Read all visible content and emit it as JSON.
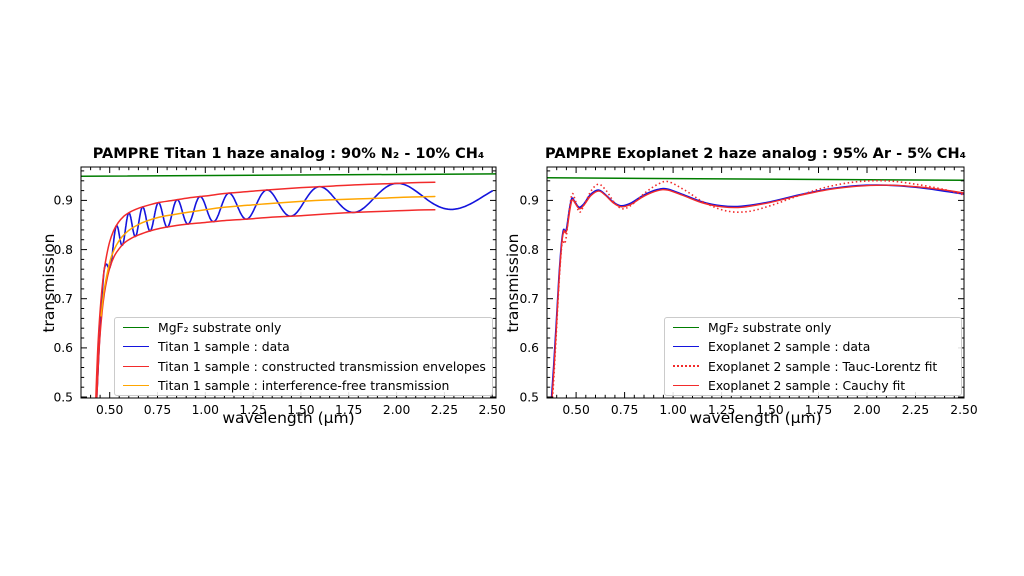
{
  "chart_data": [
    {
      "id": "titan1",
      "type": "line",
      "title": "PAMPRE Titan 1 haze analog : 90% N₂ - 10% CH₄",
      "xlabel": "wavelength (μm)",
      "ylabel": "transmission",
      "xlim": [
        0.35,
        2.52
      ],
      "ylim": [
        0.498,
        0.968
      ],
      "xticks": [
        0.5,
        0.75,
        1.0,
        1.25,
        1.5,
        1.75,
        2.0,
        2.25,
        2.5
      ],
      "xtick_labels": [
        "0.50",
        "0.75",
        "1.00",
        "1.25",
        "1.50",
        "1.75",
        "2.00",
        "2.25",
        "2.50"
      ],
      "yticks": [
        0.5,
        0.6,
        0.7,
        0.8,
        0.9
      ],
      "ytick_labels": [
        "0.5",
        "0.6",
        "0.7",
        "0.8",
        "0.9"
      ],
      "minor_x_step": 0.05,
      "minor_y_step": 0.02,
      "grid": false,
      "legend": {
        "position": "lower right"
      },
      "series": [
        {
          "name": "MgF₂ substrate only",
          "color": "#007d00",
          "line": "solid",
          "width": 1.5,
          "curves": [
            [
              [
                0.35,
                0.949
              ],
              [
                2.52,
                0.954
              ]
            ]
          ]
        },
        {
          "name": "Titan 1 sample : data",
          "color": "#1414dd",
          "line": "solid",
          "width": 1.6,
          "generator": "interference",
          "envelope_series": 2,
          "lambda_range": [
            0.432,
            2.5
          ],
          "osc": {
            "a": 8.2,
            "b": -0.35,
            "phase": 4.052
          }
        },
        {
          "name": "Titan 1 sample : constructed transmission envelopes",
          "color": "#f22b2b",
          "line": "solid",
          "width": 1.5,
          "smooth": true,
          "curves": [
            [
              [
                0.425,
                0.46
              ],
              [
                0.43,
                0.525
              ],
              [
                0.44,
                0.615
              ],
              [
                0.455,
                0.7
              ],
              [
                0.47,
                0.755
              ],
              [
                0.485,
                0.79
              ],
              [
                0.5,
                0.816
              ],
              [
                0.52,
                0.838
              ],
              [
                0.545,
                0.855
              ],
              [
                0.575,
                0.868
              ],
              [
                0.61,
                0.877
              ],
              [
                0.65,
                0.884
              ],
              [
                0.7,
                0.89
              ],
              [
                0.76,
                0.896
              ],
              [
                0.83,
                0.9
              ],
              [
                0.91,
                0.905
              ],
              [
                1.0,
                0.909
              ],
              [
                1.1,
                0.914
              ],
              [
                1.22,
                0.918
              ],
              [
                1.35,
                0.922
              ],
              [
                1.5,
                0.926
              ],
              [
                1.65,
                0.929
              ],
              [
                1.8,
                0.932
              ],
              [
                1.95,
                0.934
              ],
              [
                2.08,
                0.936
              ],
              [
                2.2,
                0.937
              ]
            ],
            [
              [
                0.428,
                0.46
              ],
              [
                0.435,
                0.52
              ],
              [
                0.445,
                0.6
              ],
              [
                0.458,
                0.665
              ],
              [
                0.472,
                0.71
              ],
              [
                0.487,
                0.742
              ],
              [
                0.503,
                0.766
              ],
              [
                0.523,
                0.786
              ],
              [
                0.548,
                0.801
              ],
              [
                0.578,
                0.814
              ],
              [
                0.613,
                0.823
              ],
              [
                0.653,
                0.83
              ],
              [
                0.703,
                0.837
              ],
              [
                0.763,
                0.843
              ],
              [
                0.833,
                0.848
              ],
              [
                0.913,
                0.852
              ],
              [
                1.0,
                0.855
              ],
              [
                1.1,
                0.859
              ],
              [
                1.22,
                0.862
              ],
              [
                1.35,
                0.866
              ],
              [
                1.5,
                0.869
              ],
              [
                1.65,
                0.873
              ],
              [
                1.8,
                0.876
              ],
              [
                1.95,
                0.878
              ],
              [
                2.08,
                0.88
              ],
              [
                2.2,
                0.881
              ]
            ]
          ]
        },
        {
          "name": "Titan 1 sample : interference-free transmission",
          "color": "#ffa600",
          "line": "solid",
          "width": 1.5,
          "smooth": true,
          "curves": [
            [
              [
                0.455,
                0.665
              ],
              [
                0.47,
                0.715
              ],
              [
                0.49,
                0.757
              ],
              [
                0.51,
                0.787
              ],
              [
                0.535,
                0.809
              ],
              [
                0.565,
                0.826
              ],
              [
                0.6,
                0.839
              ],
              [
                0.65,
                0.851
              ],
              [
                0.7,
                0.859
              ],
              [
                0.76,
                0.866
              ],
              [
                0.83,
                0.871
              ],
              [
                0.91,
                0.876
              ],
              [
                1.0,
                0.881
              ],
              [
                1.1,
                0.886
              ],
              [
                1.22,
                0.89
              ],
              [
                1.35,
                0.894
              ],
              [
                1.5,
                0.898
              ],
              [
                1.65,
                0.901
              ],
              [
                1.8,
                0.903
              ],
              [
                1.95,
                0.905
              ],
              [
                2.08,
                0.907
              ],
              [
                2.2,
                0.908
              ]
            ]
          ]
        }
      ]
    },
    {
      "id": "exoplanet2",
      "type": "line",
      "title": "PAMPRE Exoplanet 2 haze analog : 95% Ar - 5% CH₄",
      "xlabel": "wavelength (μm)",
      "ylabel": "transmission",
      "xlim": [
        0.35,
        2.5
      ],
      "ylim": [
        0.498,
        0.968
      ],
      "xticks": [
        0.5,
        0.75,
        1.0,
        1.25,
        1.5,
        1.75,
        2.0,
        2.25,
        2.5
      ],
      "xtick_labels": [
        "0.50",
        "0.75",
        "1.00",
        "1.25",
        "1.50",
        "1.75",
        "2.00",
        "2.25",
        "2.50"
      ],
      "yticks": [
        0.5,
        0.6,
        0.7,
        0.8,
        0.9
      ],
      "ytick_labels": [
        "0.5",
        "0.6",
        "0.7",
        "0.8",
        "0.9"
      ],
      "minor_x_step": 0.05,
      "minor_y_step": 0.02,
      "grid": false,
      "legend": {
        "position": "lower right"
      },
      "series": [
        {
          "name": "MgF₂ substrate only",
          "color": "#007d00",
          "line": "solid",
          "width": 1.5,
          "curves": [
            [
              [
                0.35,
                0.946
              ],
              [
                2.5,
                0.941
              ]
            ]
          ]
        },
        {
          "name": "Exoplanet 2 sample : data",
          "color": "#1414dd",
          "line": "solid",
          "width": 1.7,
          "smooth": true,
          "curves": [
            [
              [
                0.372,
                0.49
              ],
              [
                0.385,
                0.565
              ],
              [
                0.398,
                0.65
              ],
              [
                0.412,
                0.745
              ],
              [
                0.425,
                0.812
              ],
              [
                0.435,
                0.84
              ],
              [
                0.443,
                0.837
              ],
              [
                0.452,
                0.845
              ],
              [
                0.465,
                0.88
              ],
              [
                0.478,
                0.904
              ],
              [
                0.492,
                0.898
              ],
              [
                0.515,
                0.886
              ],
              [
                0.54,
                0.893
              ],
              [
                0.575,
                0.912
              ],
              [
                0.615,
                0.921
              ],
              [
                0.65,
                0.912
              ],
              [
                0.69,
                0.897
              ],
              [
                0.73,
                0.889
              ],
              [
                0.78,
                0.894
              ],
              [
                0.85,
                0.911
              ],
              [
                0.92,
                0.922
              ],
              [
                0.97,
                0.923
              ],
              [
                1.05,
                0.912
              ],
              [
                1.15,
                0.897
              ],
              [
                1.25,
                0.889
              ],
              [
                1.35,
                0.888
              ],
              [
                1.5,
                0.897
              ],
              [
                1.65,
                0.911
              ],
              [
                1.8,
                0.923
              ],
              [
                1.95,
                0.93
              ],
              [
                2.1,
                0.931
              ],
              [
                2.25,
                0.927
              ],
              [
                2.4,
                0.919
              ],
              [
                2.5,
                0.913
              ]
            ]
          ]
        },
        {
          "name": "Exoplanet 2 sample : Tauc-Lorentz fit",
          "color": "#f22b2b",
          "line": "dotted",
          "width": 1.6,
          "smooth": true,
          "curves": [
            [
              [
                0.378,
                0.49
              ],
              [
                0.392,
                0.585
              ],
              [
                0.406,
                0.69
              ],
              [
                0.419,
                0.775
              ],
              [
                0.43,
                0.818
              ],
              [
                0.44,
                0.812
              ],
              [
                0.45,
                0.828
              ],
              [
                0.466,
                0.884
              ],
              [
                0.48,
                0.913
              ],
              [
                0.494,
                0.903
              ],
              [
                0.517,
                0.876
              ],
              [
                0.546,
                0.895
              ],
              [
                0.58,
                0.921
              ],
              [
                0.617,
                0.933
              ],
              [
                0.655,
                0.92
              ],
              [
                0.695,
                0.897
              ],
              [
                0.737,
                0.883
              ],
              [
                0.787,
                0.891
              ],
              [
                0.857,
                0.916
              ],
              [
                0.927,
                0.934
              ],
              [
                0.977,
                0.938
              ],
              [
                1.06,
                0.921
              ],
              [
                1.16,
                0.896
              ],
              [
                1.27,
                0.879
              ],
              [
                1.38,
                0.877
              ],
              [
                1.5,
                0.889
              ],
              [
                1.65,
                0.91
              ],
              [
                1.8,
                0.928
              ],
              [
                1.95,
                0.938
              ],
              [
                2.1,
                0.94
              ],
              [
                2.25,
                0.933
              ],
              [
                2.4,
                0.922
              ],
              [
                2.5,
                0.911
              ]
            ]
          ]
        },
        {
          "name": "Exoplanet 2 sample : Cauchy fit",
          "color": "#f22b2b",
          "line": "solid",
          "width": 1.4,
          "smooth": true,
          "curves": [
            [
              [
                0.375,
                0.49
              ],
              [
                0.388,
                0.57
              ],
              [
                0.401,
                0.66
              ],
              [
                0.414,
                0.75
              ],
              [
                0.427,
                0.815
              ],
              [
                0.437,
                0.838
              ],
              [
                0.445,
                0.834
              ],
              [
                0.454,
                0.843
              ],
              [
                0.467,
                0.878
              ],
              [
                0.48,
                0.901
              ],
              [
                0.494,
                0.895
              ],
              [
                0.517,
                0.883
              ],
              [
                0.542,
                0.891
              ],
              [
                0.577,
                0.91
              ],
              [
                0.617,
                0.919
              ],
              [
                0.652,
                0.91
              ],
              [
                0.692,
                0.895
              ],
              [
                0.732,
                0.887
              ],
              [
                0.782,
                0.892
              ],
              [
                0.852,
                0.909
              ],
              [
                0.922,
                0.92
              ],
              [
                0.972,
                0.921
              ],
              [
                1.052,
                0.91
              ],
              [
                1.152,
                0.895
              ],
              [
                1.252,
                0.887
              ],
              [
                1.352,
                0.886
              ],
              [
                1.502,
                0.896
              ],
              [
                1.652,
                0.91
              ],
              [
                1.802,
                0.922
              ],
              [
                1.952,
                0.929
              ],
              [
                2.102,
                0.931
              ],
              [
                2.252,
                0.928
              ],
              [
                2.402,
                0.921
              ],
              [
                2.5,
                0.915
              ]
            ]
          ]
        }
      ]
    }
  ]
}
